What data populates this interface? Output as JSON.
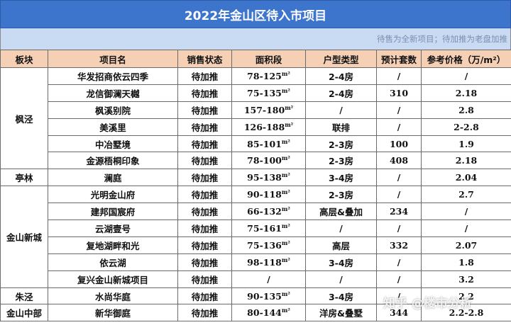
{
  "title": "2022年金山区待入市项目",
  "subtitle": "待售为全新项目；待加推为老盘加推",
  "headers": {
    "block": "板块",
    "project": "项目名",
    "status": "销售状态",
    "area": "面积段",
    "type": "户型类型",
    "units": "预计套数",
    "price": "参考价格（万/m²）"
  },
  "rows": [
    {
      "block": "枫泾",
      "project": "华发招商依云四季",
      "status": "待加推",
      "area": "78-125",
      "type": "2-4房",
      "units": "/",
      "price": "/"
    },
    {
      "project": "龙信御澜天樾",
      "status": "待加推",
      "area": "75-135",
      "type": "2-4房",
      "units": "310",
      "price": "2.18"
    },
    {
      "project": "枫溪别院",
      "status": "待加推",
      "area": "157-180",
      "type": "/",
      "units": "/",
      "price": "2.8"
    },
    {
      "project": "美溪里",
      "status": "待加推",
      "area": "126-188",
      "type": "联排",
      "units": "/",
      "price": "2-2.8"
    },
    {
      "project": "中冶墅境",
      "status": "待加推",
      "area": "85-101",
      "type": "2-3房",
      "units": "100",
      "price": "1.9"
    },
    {
      "project": "金源梧桐印象",
      "status": "待加推",
      "area": "78-100",
      "type": "2-3房",
      "units": "408",
      "price": "2.18"
    },
    {
      "block": "亭林",
      "project": "澜庭",
      "status": "待加推",
      "area": "95-138",
      "type": "3-4房",
      "units": "/",
      "price": "2.04"
    },
    {
      "block": "金山新城",
      "project": "光明金山府",
      "status": "待加推",
      "area": "90-118",
      "type": "2-3房",
      "units": "/",
      "price": "2.7"
    },
    {
      "project": "建邦国宸府",
      "status": "待加推",
      "area": "66-132",
      "type": "高层&叠加",
      "units": "234",
      "price": "/"
    },
    {
      "project": "云湖壹号",
      "status": "待加推",
      "area": "75-161",
      "type": "/",
      "units": "/",
      "price": "/"
    },
    {
      "project": "复地湖畔和光",
      "status": "待加推",
      "area": "75-136",
      "type": "高层",
      "units": "332",
      "price": "2.07"
    },
    {
      "project": "依云湖",
      "status": "待加推",
      "area": "98-118",
      "type": "3-4房",
      "units": "/",
      "price": "1.8"
    },
    {
      "project": "复兴金山新城项目",
      "status": "待加推",
      "area": "/",
      "type": "/",
      "units": "/",
      "price": "3.2"
    },
    {
      "block": "朱泾",
      "project": "水尚华庭",
      "status": "待加推",
      "area": "90-135",
      "type": "3-4房",
      "units": "/",
      "price": "2.2"
    },
    {
      "block": "金山中部",
      "project": "新华御庭",
      "status": "待加推",
      "area": "80-144",
      "type": "洋房&叠墅",
      "units": "344",
      "price": "2.2-2.8"
    }
  ],
  "area_unit": "m²",
  "watermark": {
    "text": "知乎 @楼市分析",
    "badge": "楼"
  }
}
